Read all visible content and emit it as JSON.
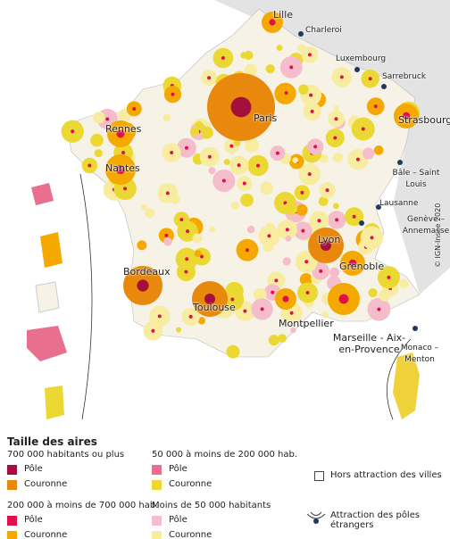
{
  "map": {
    "cities": [
      "Lille",
      "Paris",
      "Strasbourg",
      "Rennes",
      "Nantes",
      "Lyon",
      "Grenoble",
      "Bordeaux",
      "Toulouse",
      "Montpellier",
      "Marseille - Aix-en-Provence"
    ],
    "foreign_cities": [
      "Charleroi",
      "Luxembourg",
      "Sarrebruck",
      "Bâle – Saint Louis",
      "Lausanne",
      "Genève – Annemasse",
      "Monaco – Menton"
    ],
    "copyright": "© IGN-Insee 2020"
  },
  "legend": {
    "title": "Taille des aires",
    "groups": [
      {
        "title": "700 000 habitants ou plus",
        "items": [
          "Pôle",
          "Couronne"
        ]
      },
      {
        "title": "200 000 à moins de 700 000 hab.",
        "items": [
          "Pôle",
          "Couronne"
        ]
      },
      {
        "title": "50 000 à moins de 200 000 hab.",
        "items": [
          "Pôle",
          "Couronne"
        ]
      },
      {
        "title": "Moins de 50 000 habitants",
        "items": [
          "Pôle",
          "Couronne"
        ]
      }
    ],
    "other": [
      "Hors attraction des villes",
      "Attraction des pôles étrangers"
    ]
  }
}
